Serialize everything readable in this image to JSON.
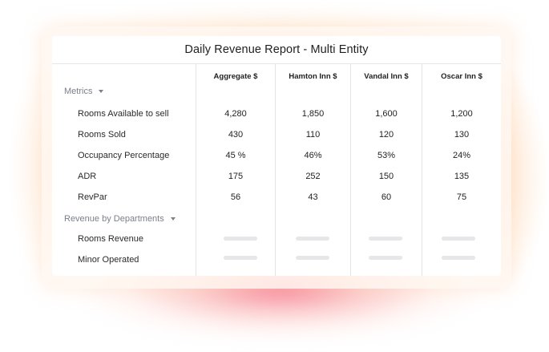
{
  "report": {
    "title": "Daily Revenue Report - Multi Entity",
    "columns": [
      "Aggregate $",
      "Hamton Inn $",
      "Vandal Inn $",
      "Oscar Inn $"
    ],
    "sections": [
      {
        "label": "Metrics",
        "icon": "chevron-down-icon",
        "rows": [
          {
            "label": "Rooms Available to sell",
            "values": [
              "4,280",
              "1,850",
              "1,600",
              "1,200"
            ]
          },
          {
            "label": "Rooms Sold",
            "values": [
              "430",
              "110",
              "120",
              "130"
            ]
          },
          {
            "label": "Occupancy Percentage",
            "values": [
              "45 %",
              "46%",
              "53%",
              "24%"
            ]
          },
          {
            "label": "ADR",
            "values": [
              "175",
              "252",
              "150",
              "135"
            ]
          },
          {
            "label": "RevPar",
            "values": [
              "56",
              "43",
              "60",
              "75"
            ]
          }
        ]
      },
      {
        "label": "Revenue by Departments",
        "icon": "chevron-down-icon",
        "rows": [
          {
            "label": "Rooms Revenue",
            "values": [
              "",
              "",
              "",
              ""
            ]
          },
          {
            "label": "Minor Operated",
            "values": [
              "",
              "",
              "",
              ""
            ]
          }
        ]
      }
    ]
  },
  "colors": {
    "glow_pink": "#f4607c",
    "glow_peach": "#ffd6aa",
    "text_primary": "#1f1f1f",
    "text_muted": "#7b8089",
    "skeleton": "#e7e7e9"
  }
}
